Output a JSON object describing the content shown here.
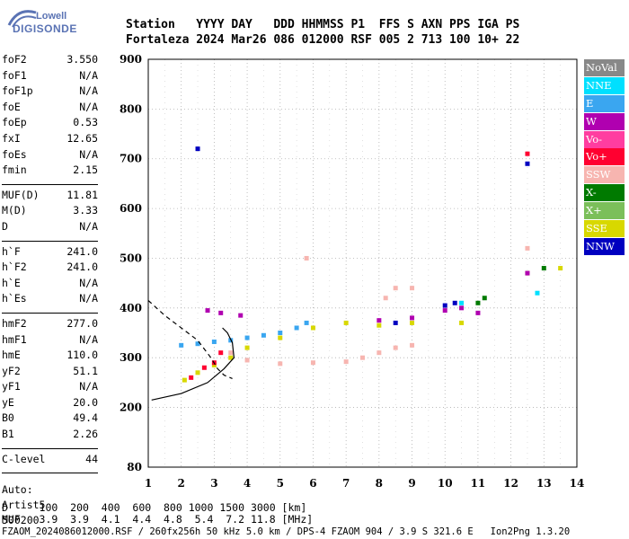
{
  "logo": {
    "line1": "Lowell",
    "line2": "DIGISONDE"
  },
  "header": {
    "labels": "Station   YYYY DAY   DDD HHMMSS P1  FFS S AXN PPS IGA PS",
    "values": "Fortaleza 2024 Mar26 086 012000 RSF 005 2 713 100 10+ 22"
  },
  "params": [
    {
      "group": [
        {
          "name": "foF2",
          "value": "3.550"
        },
        {
          "name": "foF1",
          "value": "N/A"
        },
        {
          "name": "foF1p",
          "value": "N/A"
        },
        {
          "name": "foE",
          "value": "N/A"
        },
        {
          "name": "foEp",
          "value": "0.53"
        },
        {
          "name": "fxI",
          "value": "12.65"
        },
        {
          "name": "foEs",
          "value": "N/A"
        },
        {
          "name": "fmin",
          "value": "2.15"
        }
      ]
    },
    {
      "group": [
        {
          "name": "MUF(D)",
          "value": "11.81"
        },
        {
          "name": "M(D)",
          "value": "3.33"
        },
        {
          "name": "D",
          "value": "N/A"
        }
      ]
    },
    {
      "group": [
        {
          "name": "h`F",
          "value": "241.0"
        },
        {
          "name": "h`F2",
          "value": "241.0"
        },
        {
          "name": "h`E",
          "value": "N/A"
        },
        {
          "name": "h`Es",
          "value": "N/A"
        }
      ]
    },
    {
      "group": [
        {
          "name": "hmF2",
          "value": "277.0"
        },
        {
          "name": "hmF1",
          "value": "N/A"
        },
        {
          "name": "hmE",
          "value": "110.0"
        },
        {
          "name": "yF2",
          "value": "51.1"
        },
        {
          "name": "yF1",
          "value": "N/A"
        },
        {
          "name": "yE",
          "value": "20.0"
        },
        {
          "name": "B0",
          "value": "49.4"
        },
        {
          "name": "B1",
          "value": "2.26"
        }
      ]
    },
    {
      "group": [
        {
          "name": "C-level",
          "value": "44"
        }
      ]
    }
  ],
  "auto": {
    "line1": "Auto:",
    "line2": "Artist5",
    "line3": "500200"
  },
  "legend": [
    {
      "label": "NoVal",
      "color": "#888888"
    },
    {
      "label": "NNE",
      "color": "#00e0ff"
    },
    {
      "label": "E",
      "color": "#3aa6f0"
    },
    {
      "label": "W",
      "color": "#b000b0"
    },
    {
      "label": "Vo-",
      "color": "#ff3da0"
    },
    {
      "label": "Vo+",
      "color": "#ff0030"
    },
    {
      "label": "SSW",
      "color": "#f7b5b0"
    },
    {
      "label": "X-",
      "color": "#007a00"
    },
    {
      "label": "X+",
      "color": "#7bbf5a"
    },
    {
      "label": "SSE",
      "color": "#d8d800"
    },
    {
      "label": "NNW",
      "color": "#0000c0"
    }
  ],
  "footer": {
    "line1": "D     100  200  400  600  800 1000 1500 3000 [km]",
    "line2": "MUF   3.9  3.9  4.1  4.4  4.8  5.4  7.2 11.8 [MHz]",
    "line3": "FZAOM_2024086012000.RSF / 260fx256h 50 kHz 5.0 km / DPS-4 FZAOM 904 / 3.9 S 321.6 E   Ion2Png 1.3.20"
  },
  "chart_data": {
    "type": "scatter",
    "xlabel": "",
    "ylabel": "",
    "xlim": [
      1,
      14
    ],
    "ylim": [
      80,
      900
    ],
    "x_ticks": [
      1,
      2,
      3,
      4,
      5,
      6,
      7,
      8,
      9,
      10,
      11,
      12,
      13,
      14
    ],
    "y_ticks": [
      80,
      200,
      300,
      400,
      500,
      600,
      700,
      800,
      900
    ],
    "grid": true,
    "series": [
      {
        "name": "E",
        "color": "#3aa6f0",
        "points": [
          [
            2.0,
            325
          ],
          [
            2.5,
            328
          ],
          [
            3.0,
            332
          ],
          [
            3.5,
            335
          ],
          [
            4.0,
            340
          ],
          [
            4.5,
            345
          ],
          [
            5.0,
            350
          ],
          [
            5.5,
            360
          ],
          [
            5.8,
            370
          ]
        ]
      },
      {
        "name": "SSE",
        "color": "#d8d800",
        "points": [
          [
            2.1,
            255
          ],
          [
            2.5,
            270
          ],
          [
            3.0,
            285
          ],
          [
            3.5,
            300
          ],
          [
            4.0,
            320
          ],
          [
            5.0,
            340
          ],
          [
            6.0,
            360
          ],
          [
            7.0,
            370
          ],
          [
            8.0,
            365
          ],
          [
            9.0,
            370
          ],
          [
            10.5,
            370
          ],
          [
            12.5,
            470
          ],
          [
            13.5,
            480
          ]
        ]
      },
      {
        "name": "W",
        "color": "#b000b0",
        "points": [
          [
            2.8,
            395
          ],
          [
            3.2,
            390
          ],
          [
            3.8,
            385
          ],
          [
            8.0,
            375
          ],
          [
            9.0,
            380
          ],
          [
            10.0,
            395
          ],
          [
            10.5,
            400
          ],
          [
            11.0,
            390
          ],
          [
            12.5,
            470
          ]
        ]
      },
      {
        "name": "SSW",
        "color": "#f7b5b0",
        "points": [
          [
            3.5,
            310
          ],
          [
            4.0,
            295
          ],
          [
            5.0,
            288
          ],
          [
            6.0,
            290
          ],
          [
            7.0,
            292
          ],
          [
            7.5,
            300
          ],
          [
            8.0,
            310
          ],
          [
            8.5,
            320
          ],
          [
            9.0,
            325
          ],
          [
            8.2,
            420
          ],
          [
            8.5,
            440
          ],
          [
            9.0,
            440
          ],
          [
            5.8,
            500
          ],
          [
            12.5,
            520
          ]
        ]
      },
      {
        "name": "NNW",
        "color": "#0000c0",
        "points": [
          [
            2.5,
            720
          ],
          [
            10.0,
            405
          ],
          [
            10.3,
            410
          ],
          [
            12.5,
            690
          ],
          [
            8.5,
            370
          ]
        ]
      },
      {
        "name": "Vo+",
        "color": "#ff0030",
        "points": [
          [
            2.3,
            260
          ],
          [
            2.7,
            280
          ],
          [
            3.0,
            290
          ],
          [
            12.5,
            710
          ],
          [
            3.2,
            310
          ]
        ]
      },
      {
        "name": "X-",
        "color": "#007a00",
        "points": [
          [
            11.2,
            420
          ],
          [
            11.0,
            410
          ],
          [
            13.0,
            480
          ]
        ]
      },
      {
        "name": "NNE",
        "color": "#00e0ff",
        "points": [
          [
            10.5,
            410
          ],
          [
            12.8,
            430
          ]
        ]
      }
    ],
    "curves": [
      {
        "style": "solid",
        "points": [
          [
            1.1,
            215
          ],
          [
            2.0,
            228
          ],
          [
            2.8,
            250
          ],
          [
            3.3,
            278
          ],
          [
            3.6,
            300
          ],
          [
            3.55,
            330
          ],
          [
            3.4,
            350
          ],
          [
            3.25,
            360
          ]
        ]
      },
      {
        "style": "dashed",
        "points": [
          [
            1.0,
            415
          ],
          [
            1.5,
            385
          ],
          [
            2.0,
            360
          ],
          [
            2.5,
            335
          ],
          [
            2.9,
            300
          ],
          [
            3.1,
            278
          ],
          [
            3.3,
            265
          ],
          [
            3.55,
            258
          ]
        ]
      }
    ]
  }
}
